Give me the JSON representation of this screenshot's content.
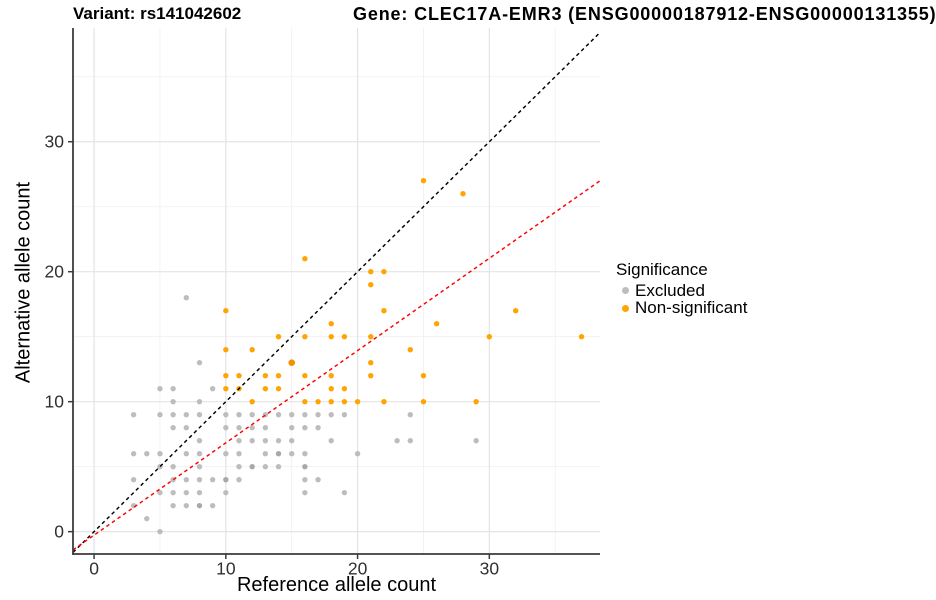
{
  "titles": {
    "left": "Variant: rs141042602",
    "right": "Gene: CLEC17A-EMR3 (ENSG00000187912-ENSG00000131355)"
  },
  "legend": {
    "title": "Significance",
    "items": [
      {
        "label": "Excluded",
        "color": "#BDBDBD"
      },
      {
        "label": "Non-significant",
        "color": "#FFA400"
      }
    ]
  },
  "chart_data": {
    "type": "scatter",
    "xlabel": "Reference allele count",
    "ylabel": "Alternative allele count",
    "x_ticks": [
      0,
      10,
      20,
      30
    ],
    "x_minor": [
      5,
      15,
      25,
      35
    ],
    "y_ticks": [
      0,
      10,
      20,
      30
    ],
    "y_minor": [
      5,
      15,
      25,
      35
    ],
    "xlim": [
      -1.6,
      38.4
    ],
    "ylim": [
      -1.72,
      38.75
    ],
    "grid": true,
    "legend_position": "right",
    "colors": {
      "grid_major": "#e4e4e4",
      "grid_minor": "#f0f0f0",
      "axis_line": "#3c3c3c",
      "tick_label": "#303030"
    },
    "series": [
      {
        "name": "Excluded",
        "color": "#BDBDBD",
        "dark_color": "#A8A8A8",
        "points": [
          [
            7,
            18
          ],
          [
            8,
            13
          ],
          [
            5,
            11
          ],
          [
            6,
            11
          ],
          [
            9,
            11
          ],
          [
            6,
            10
          ],
          [
            8,
            10
          ],
          [
            3,
            9
          ],
          [
            5,
            9
          ],
          [
            6,
            9
          ],
          [
            7,
            9
          ],
          [
            8,
            9
          ],
          [
            10,
            9
          ],
          [
            11,
            9
          ],
          [
            12,
            9
          ],
          [
            13,
            9
          ],
          [
            14,
            9
          ],
          [
            15,
            9
          ],
          [
            16,
            9
          ],
          [
            17,
            9
          ],
          [
            18,
            9
          ],
          [
            19,
            9
          ],
          [
            24,
            9
          ],
          [
            6,
            8
          ],
          [
            7,
            8
          ],
          [
            10,
            8
          ],
          [
            11,
            8
          ],
          [
            12,
            8
          ],
          [
            13,
            8
          ],
          [
            15,
            8
          ],
          [
            16,
            8
          ],
          [
            17,
            8
          ],
          [
            8,
            7
          ],
          [
            11,
            7
          ],
          [
            12,
            7
          ],
          [
            13,
            7
          ],
          [
            14,
            7
          ],
          [
            15,
            7
          ],
          [
            18,
            7
          ],
          [
            23,
            7
          ],
          [
            24,
            7
          ],
          [
            29,
            7
          ],
          [
            3,
            6
          ],
          [
            4,
            6
          ],
          [
            5,
            6
          ],
          [
            7,
            6
          ],
          [
            8,
            6
          ],
          [
            10,
            6
          ],
          [
            11,
            6
          ],
          [
            13,
            6
          ],
          [
            14,
            6,
            1
          ],
          [
            15,
            6
          ],
          [
            16,
            6
          ],
          [
            20,
            6
          ],
          [
            5,
            5
          ],
          [
            6,
            5
          ],
          [
            8,
            5
          ],
          [
            11,
            5
          ],
          [
            12,
            5,
            1
          ],
          [
            13,
            5
          ],
          [
            14,
            5
          ],
          [
            16,
            5,
            1
          ],
          [
            3,
            4
          ],
          [
            6,
            4
          ],
          [
            7,
            4
          ],
          [
            8,
            4
          ],
          [
            9,
            4
          ],
          [
            10,
            4,
            1
          ],
          [
            11,
            4
          ],
          [
            16,
            4
          ],
          [
            17,
            4
          ],
          [
            5,
            3
          ],
          [
            6,
            3
          ],
          [
            7,
            3
          ],
          [
            8,
            3
          ],
          [
            10,
            3
          ],
          [
            16,
            3
          ],
          [
            19,
            3
          ],
          [
            3,
            2
          ],
          [
            6,
            2
          ],
          [
            7,
            2
          ],
          [
            8,
            2,
            1
          ],
          [
            9,
            2
          ],
          [
            4,
            1
          ],
          [
            5,
            0
          ]
        ]
      },
      {
        "name": "Non-significant",
        "color": "#FFA400",
        "dark_color": "#F29100",
        "points": [
          [
            25,
            27
          ],
          [
            28,
            26
          ],
          [
            16,
            21
          ],
          [
            21,
            20
          ],
          [
            22,
            20
          ],
          [
            21,
            19
          ],
          [
            10,
            17
          ],
          [
            22,
            17
          ],
          [
            32,
            17
          ],
          [
            18,
            16
          ],
          [
            26,
            16
          ],
          [
            14,
            15
          ],
          [
            16,
            15
          ],
          [
            18,
            15
          ],
          [
            19,
            15
          ],
          [
            21,
            15
          ],
          [
            30,
            15
          ],
          [
            37,
            15
          ],
          [
            10,
            14
          ],
          [
            12,
            14
          ],
          [
            24,
            14
          ],
          [
            15,
            13,
            2
          ],
          [
            21,
            13
          ],
          [
            10,
            12
          ],
          [
            11,
            12
          ],
          [
            13,
            12
          ],
          [
            14,
            12
          ],
          [
            16,
            12
          ],
          [
            18,
            12
          ],
          [
            21,
            12
          ],
          [
            25,
            12
          ],
          [
            10,
            11
          ],
          [
            11,
            11
          ],
          [
            13,
            11
          ],
          [
            14,
            11
          ],
          [
            18,
            11
          ],
          [
            19,
            11
          ],
          [
            12,
            10
          ],
          [
            16,
            10
          ],
          [
            17,
            10
          ],
          [
            18,
            10
          ],
          [
            19,
            10
          ],
          [
            20,
            10
          ],
          [
            22,
            10
          ],
          [
            25,
            10
          ],
          [
            29,
            10
          ]
        ]
      }
    ],
    "lines": [
      {
        "name": "identity-line",
        "color": "#000000",
        "slope": 1,
        "intercept": 0,
        "dash": "3.6,3.2"
      },
      {
        "name": "fit-line",
        "color": "#FF0000",
        "slope": 0.71,
        "intercept": -0.27,
        "dash": "3.6,3.2"
      }
    ]
  }
}
